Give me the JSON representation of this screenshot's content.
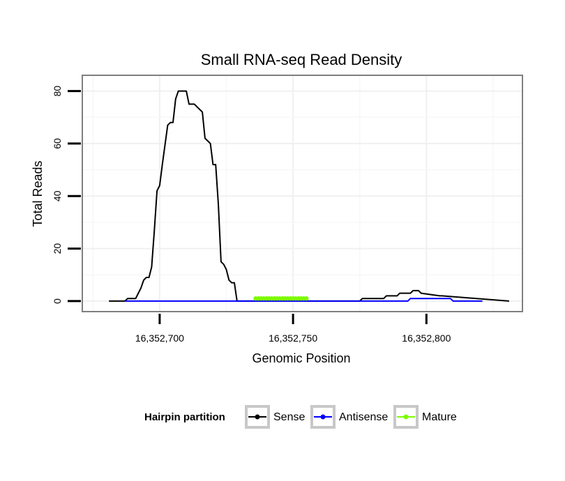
{
  "chart_data": {
    "type": "line",
    "title": "Small RNA-seq Read Density",
    "xlabel": "Genomic Position",
    "ylabel": "Total Reads",
    "xlim": [
      16352671,
      16352836
    ],
    "ylim": [
      -4,
      86
    ],
    "x_ticks": [
      16352700,
      16352750,
      16352800
    ],
    "x_tick_labels": [
      "16,352,700",
      "16,352,750",
      "16,352,800"
    ],
    "y_ticks": [
      0,
      20,
      40,
      60,
      80
    ],
    "y_tick_labels": [
      "0",
      "20",
      "40",
      "60",
      "80"
    ],
    "grid": true,
    "legend": {
      "title": "Hairpin partition",
      "position": "bottom",
      "entries": [
        {
          "name": "Sense",
          "color": "#000000"
        },
        {
          "name": "Antisense",
          "color": "#0000ff"
        },
        {
          "name": "Mature",
          "color": "#7cfc00"
        }
      ]
    },
    "series": [
      {
        "name": "Sense",
        "color": "#000000",
        "x": [
          16352681,
          16352687,
          16352688,
          16352691,
          16352693,
          16352694,
          16352695,
          16352696,
          16352697,
          16352698,
          16352699,
          16352700,
          16352701,
          16352703,
          16352704,
          16352705,
          16352706,
          16352707,
          16352709,
          16352710,
          16352711,
          16352713,
          16352715,
          16352716,
          16352717,
          16352719,
          16352720,
          16352721,
          16352722,
          16352723,
          16352724,
          16352725,
          16352726,
          16352727,
          16352728,
          16352729,
          16352730,
          16352731,
          16352737,
          16352775,
          16352776,
          16352784,
          16352785,
          16352789,
          16352790,
          16352794,
          16352795,
          16352797,
          16352798,
          16352805,
          16352806,
          16352831
        ],
        "y": [
          0,
          0,
          1,
          1,
          5,
          8,
          9,
          9,
          13,
          27,
          42,
          44,
          52,
          67,
          68,
          68,
          77,
          80,
          80,
          80,
          75,
          75,
          73,
          72,
          62,
          60,
          52,
          52,
          37,
          15,
          14,
          12,
          8,
          7,
          7,
          0,
          0,
          0,
          0,
          0,
          1,
          1,
          2,
          2,
          3,
          3,
          4,
          4,
          3,
          2,
          2,
          0
        ]
      },
      {
        "name": "Antisense",
        "color": "#0000ff",
        "x": [
          16352687,
          16352731,
          16352780,
          16352793,
          16352794,
          16352809,
          16352810,
          16352821
        ],
        "y": [
          0,
          0,
          0,
          0,
          1,
          1,
          0,
          0
        ]
      },
      {
        "name": "Mature",
        "color": "#7cfc00",
        "x": [
          16352736,
          16352737,
          16352738,
          16352739,
          16352740,
          16352741,
          16352742,
          16352743,
          16352744,
          16352745,
          16352746,
          16352747,
          16352748,
          16352749,
          16352750,
          16352751,
          16352752,
          16352753,
          16352754,
          16352755
        ],
        "y": [
          1,
          1,
          1,
          1,
          1,
          1,
          1,
          1,
          1,
          1,
          1,
          1,
          1,
          1,
          1,
          1,
          1,
          1,
          1,
          1
        ]
      }
    ]
  }
}
